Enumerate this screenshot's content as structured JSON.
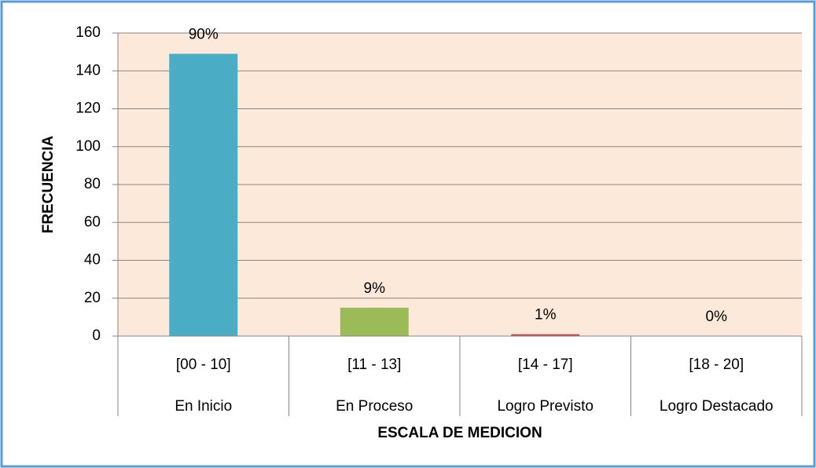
{
  "chart_data": {
    "type": "bar",
    "categories": [
      "[00 - 10]",
      "[11 - 13]",
      "[14 - 17]",
      "[18 - 20]"
    ],
    "category_names": [
      "En Inicio",
      "En Proceso",
      "Logro Previsto",
      "Logro Destacado"
    ],
    "values": [
      149,
      15,
      1,
      0
    ],
    "value_labels": [
      "90%",
      "9%",
      "1%",
      "0%"
    ],
    "colors": [
      "#4bacc6",
      "#9bbb59",
      "#c0504d",
      "#8064a2"
    ],
    "xlabel": "ESCALA DE MEDICION",
    "ylabel": "FRECUENCIA",
    "ylim": [
      0,
      160
    ],
    "yticks": [
      0,
      20,
      40,
      60,
      80,
      100,
      120,
      140,
      160
    ],
    "grid": true
  }
}
